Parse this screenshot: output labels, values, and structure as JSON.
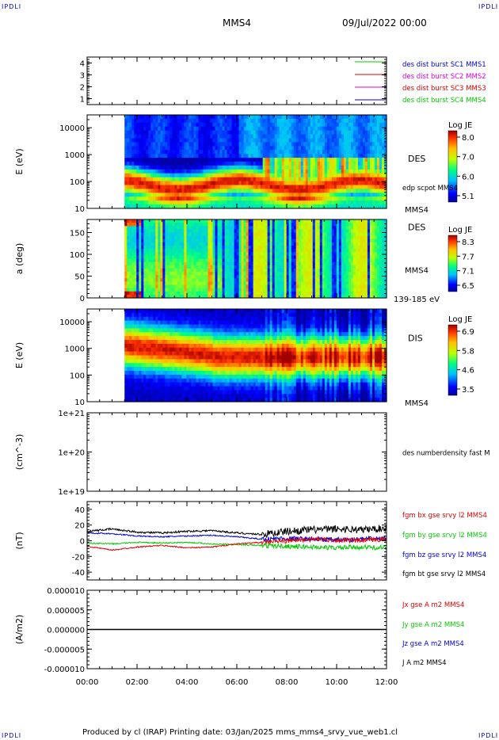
{
  "corners": {
    "tl": "IPDLI",
    "tr": "IPDLI",
    "bl": "IPDLI",
    "br": "IPDLI"
  },
  "header": {
    "spacecraft": "MMS4",
    "date": "09/Jul/2022 00:00"
  },
  "footer": {
    "text": "Produced by cl (IRAP)   Printing date: 03/Jan/2025   mms_mms4_srvy_vue_web1.cl"
  },
  "colors": {
    "red": "#e00000",
    "green": "#00cc00",
    "blue": "#0000e0",
    "magenta": "#e000e0",
    "black": "#000000"
  },
  "time_axis": {
    "ticks": [
      "00:00",
      "02:00",
      "04:00",
      "06:00",
      "08:00",
      "10:00",
      "12:00"
    ],
    "range_hours": [
      0,
      12
    ]
  },
  "chart_data": [
    {
      "type": "line",
      "title": "Burst coverage",
      "ylim": [
        0.5,
        4.5
      ],
      "yticks": [
        "1",
        "2",
        "3",
        "4"
      ],
      "series": [
        {
          "name": "des dist burst SC1 MMS1",
          "color": "#0000e0",
          "level": 1
        },
        {
          "name": "des dist burst SC2 MMS2",
          "color": "#e000e0",
          "level": 2
        },
        {
          "name": "des dist burst SC3 MMS3",
          "color": "#e00000",
          "level": 3
        },
        {
          "name": "des dist burst SC4 MMS4",
          "color": "#00cc00",
          "level": 4
        }
      ]
    },
    {
      "type": "heatmap",
      "ylabel": "E (eV)",
      "yscale": "log",
      "ylim": [
        10,
        30000
      ],
      "yticks": [
        "10",
        "100",
        "1000",
        "10000"
      ],
      "label": "DES",
      "sub": "edp scpot MMS4",
      "sc": "MMS4",
      "colorbar": {
        "title": "Log JE",
        "ticks": [
          "8.0",
          "7.0",
          "6.0",
          "5.1"
        ]
      },
      "data_start_hour": 1.5
    },
    {
      "type": "heatmap",
      "ylabel": "a (deg)",
      "ylim": [
        0,
        180
      ],
      "yticks": [
        "0",
        "50",
        "100",
        "150"
      ],
      "label": "DES",
      "sc": "MMS4",
      "energy_band": "139-185 eV",
      "colorbar": {
        "title": "Log JE",
        "ticks": [
          "8.3",
          "7.7",
          "7.1",
          "6.5"
        ]
      },
      "data_start_hour": 1.5
    },
    {
      "type": "heatmap",
      "ylabel": "E (eV)",
      "yscale": "log",
      "ylim": [
        10,
        30000
      ],
      "yticks": [
        "10",
        "100",
        "1000",
        "10000"
      ],
      "label": "DIS",
      "sc": "MMS4",
      "colorbar": {
        "title": "Log JE",
        "ticks": [
          "6.9",
          "5.8",
          "4.6",
          "3.5"
        ]
      },
      "data_start_hour": 1.5
    },
    {
      "type": "line",
      "ylabel": "(cm^-3)",
      "yscale": "log",
      "ylim": [
        1e+19,
        1e+21
      ],
      "yticks": [
        "1e+19",
        "1e+20",
        "1e+21"
      ],
      "series": [
        {
          "name": "des numberdensity fast M",
          "color": "#000000",
          "values": []
        }
      ]
    },
    {
      "type": "line",
      "ylabel": "(nT)",
      "ylim": [
        -50,
        50
      ],
      "yticks": [
        "-40",
        "-20",
        "0",
        "20",
        "40"
      ],
      "series": [
        {
          "name": "fgm bx gse srvy l2 MMS4",
          "color": "#e00000",
          "base": [
            -7,
            -12,
            -8,
            -6,
            -9,
            -8,
            -4,
            -2,
            0,
            2,
            1,
            0,
            2
          ]
        },
        {
          "name": "fgm by gse srvy l2 MMS4",
          "color": "#00cc00",
          "base": [
            -3,
            -4,
            -2,
            -3,
            -2,
            -4,
            -5,
            -6,
            -7,
            -8,
            -9,
            -8,
            -9
          ]
        },
        {
          "name": "fgm bz gse srvy l2 MMS4",
          "color": "#0000e0",
          "base": [
            10,
            9,
            6,
            5,
            6,
            7,
            5,
            2,
            3,
            2,
            1,
            2,
            3
          ]
        },
        {
          "name": "fgm bt gse srvy l2 MMS4",
          "color": "#000000",
          "base": [
            12,
            15,
            11,
            10,
            12,
            13,
            10,
            8,
            12,
            14,
            15,
            14,
            16
          ]
        }
      ]
    },
    {
      "type": "line",
      "ylabel": "(A/m2)",
      "ylim": [
        -1e-05,
        1e-05
      ],
      "yticks": [
        "-0.000010",
        "-0.000005",
        "0.000000",
        "0.000005",
        "0.000010"
      ],
      "series": [
        {
          "name": "Jx gse A m2 MMS4",
          "color": "#e00000",
          "values": [
            0
          ]
        },
        {
          "name": "Jy gse A m2 MMS4",
          "color": "#00cc00",
          "values": [
            0
          ]
        },
        {
          "name": "Jz gse A m2 MMS4",
          "color": "#0000e0",
          "values": [
            0
          ]
        },
        {
          "name": "J A m2 MMS4",
          "color": "#000000",
          "values": [
            0
          ]
        }
      ]
    }
  ]
}
